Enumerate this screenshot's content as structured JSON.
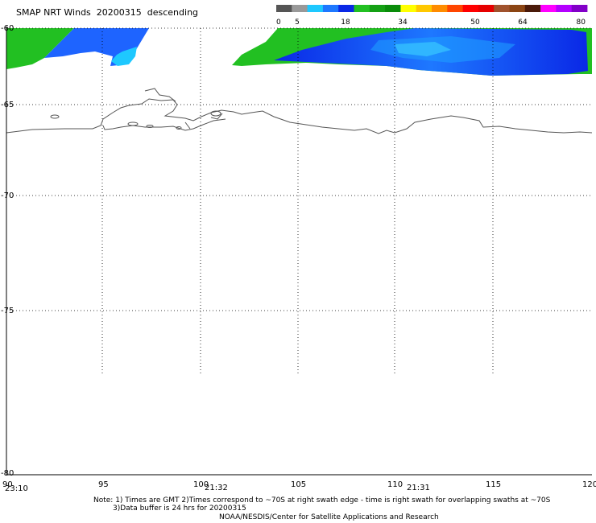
{
  "title": "SMAP NRT Winds  20200315  descending",
  "colorbar": {
    "labels": [
      "0",
      "5",
      "18",
      "34",
      "50",
      "64",
      "80"
    ],
    "segments": [
      {
        "color": "#555555"
      },
      {
        "color": "#999999"
      },
      {
        "color": "#1ec8ff"
      },
      {
        "color": "#1e78ff"
      },
      {
        "color": "#0a28e6"
      },
      {
        "color": "#22c022"
      },
      {
        "color": "#14a014"
      },
      {
        "color": "#0a8c0a"
      },
      {
        "color": "#ffff00"
      },
      {
        "color": "#ffc800"
      },
      {
        "color": "#ff8c00"
      },
      {
        "color": "#ff4600"
      },
      {
        "color": "#ff0000"
      },
      {
        "color": "#e60000"
      },
      {
        "color": "#a0522d"
      },
      {
        "color": "#8b4513"
      },
      {
        "color": "#4a1a0a"
      },
      {
        "color": "#ff00ff"
      },
      {
        "color": "#b400ff"
      },
      {
        "color": "#8200c8"
      }
    ]
  },
  "lat_labels": [
    "-60",
    "-65",
    "-70",
    "-75",
    "-80"
  ],
  "lon_labels": [
    "90",
    "95",
    "100",
    "105",
    "110",
    "115",
    "120"
  ],
  "times": [
    "23:10",
    "21:32",
    "21:31"
  ],
  "notes": {
    "line1": "Note: 1) Times are GMT 2)Times correspond to ~70S at right swath edge - time is right swath for overlapping swaths at ~70S",
    "line2": "3)Data buffer is 24 hrs for 20200315",
    "line3": "NOAA/NESDIS/Center for Satellite Applications and Research"
  }
}
